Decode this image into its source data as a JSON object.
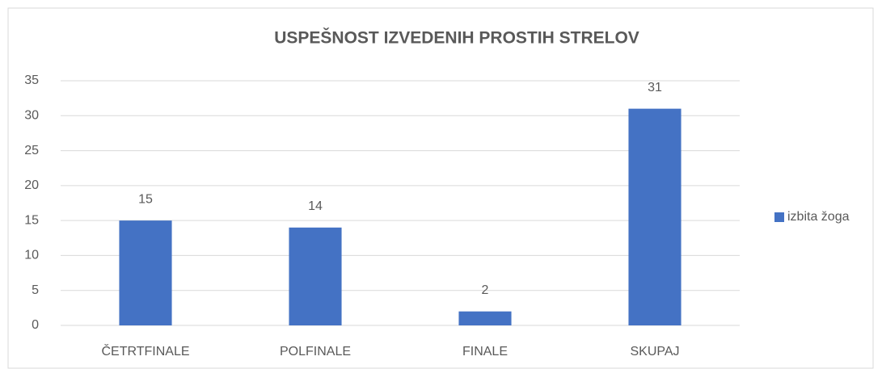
{
  "chart_data": {
    "type": "bar",
    "title": "USPEŠNOST IZVEDENIH PROSTIH STRELOV",
    "categories": [
      "ČETRTFINALE",
      "POLFINALE",
      "FINALE",
      "SKUPAJ"
    ],
    "series": [
      {
        "name": "izbita žoga",
        "color": "#4472c4",
        "values": [
          15,
          14,
          2,
          31
        ]
      }
    ],
    "ylim": [
      0,
      35
    ],
    "yticks": [
      0,
      5,
      10,
      15,
      20,
      25,
      30,
      35
    ],
    "grid": true,
    "legend": "right"
  }
}
